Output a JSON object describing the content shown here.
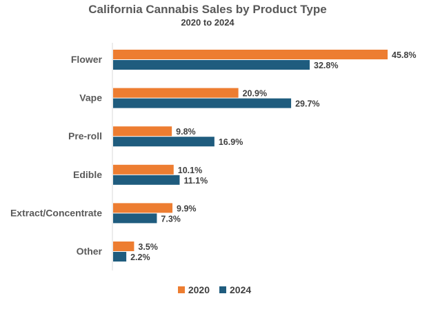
{
  "chart_data": {
    "type": "bar",
    "orientation": "horizontal",
    "title": "California Cannabis Sales by Product Type",
    "subtitle": "2020 to 2024",
    "categories": [
      "Flower",
      "Vape",
      "Pre-roll",
      "Edible",
      "Extract/Concentrate",
      "Other"
    ],
    "series": [
      {
        "name": "2020",
        "color": "#ED7D31",
        "values": [
          45.8,
          20.9,
          9.8,
          10.1,
          9.9,
          3.5
        ],
        "labels": [
          "45.8%",
          "20.9%",
          "9.8%",
          "10.1%",
          "9.9%",
          "3.5%"
        ]
      },
      {
        "name": "2024",
        "color": "#1F5C7E",
        "values": [
          32.8,
          29.7,
          16.9,
          11.1,
          7.3,
          2.2
        ],
        "labels": [
          "32.8%",
          "29.7%",
          "16.9%",
          "11.1%",
          "7.3%",
          "2.2%"
        ]
      }
    ],
    "xlim": [
      0,
      45.8
    ],
    "legend_position": "bottom",
    "grid": false
  }
}
